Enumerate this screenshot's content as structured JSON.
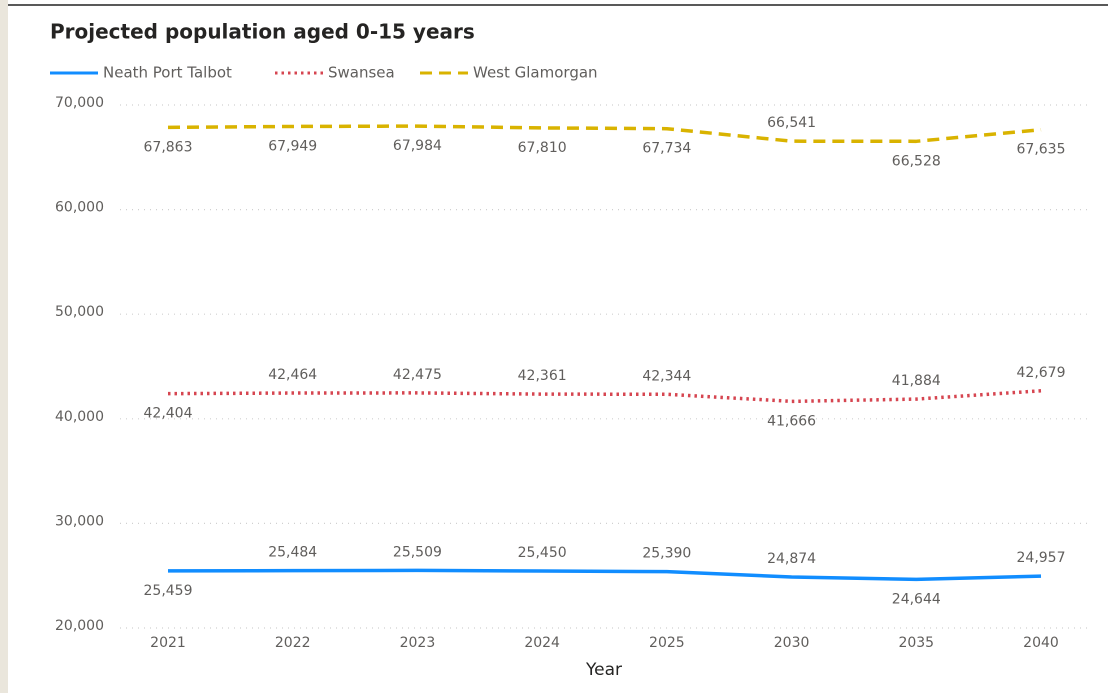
{
  "chart_data": {
    "type": "line",
    "title": "Projected population aged 0-15 years",
    "x_label": "Year",
    "categories": [
      "2021",
      "2022",
      "2023",
      "2024",
      "2025",
      "2030",
      "2035",
      "2040"
    ],
    "series": [
      {
        "name": "Neath Port Talbot",
        "color": "#118dff",
        "style": "solid",
        "values": [
          25459,
          25484,
          25509,
          25450,
          25390,
          24874,
          24644,
          24957
        ],
        "value_labels": [
          "25,459",
          "25,484",
          "25,509",
          "25,450",
          "25,390",
          "24,874",
          "24,644",
          "24,957"
        ]
      },
      {
        "name": "Swansea",
        "color": "#d64550",
        "style": "dotted",
        "values": [
          42404,
          42464,
          42475,
          42361,
          42344,
          41666,
          41884,
          42679
        ],
        "value_labels": [
          "42,404",
          "42,464",
          "42,475",
          "42,361",
          "42,344",
          "41,666",
          "41,884",
          "42,679"
        ]
      },
      {
        "name": "West Glamorgan",
        "color": "#d9b300",
        "style": "dashed",
        "values": [
          67863,
          67949,
          67984,
          67810,
          67734,
          66541,
          66528,
          67635
        ],
        "value_labels": [
          "67,863",
          "67,949",
          "67,984",
          "67,810",
          "67,734",
          "66,541",
          "66,528",
          "67,635"
        ]
      }
    ],
    "ylim": [
      20000,
      70000
    ],
    "yticks": [
      {
        "value": 20000,
        "label": "20,000"
      },
      {
        "value": 30000,
        "label": "30,000"
      },
      {
        "value": 40000,
        "label": "40,000"
      },
      {
        "value": 50000,
        "label": "50,000"
      },
      {
        "value": 60000,
        "label": "60,000"
      },
      {
        "value": 70000,
        "label": "70,000"
      }
    ],
    "grid": true
  }
}
